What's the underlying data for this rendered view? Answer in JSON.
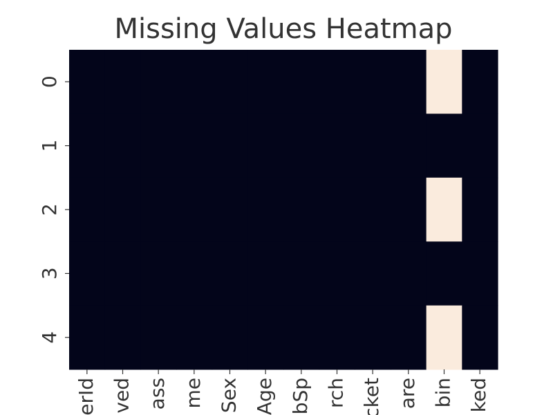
{
  "chart_data": {
    "type": "heatmap",
    "title": "Missing Values Heatmap",
    "x_tick_labels": [
      "erId",
      "ved",
      "ass",
      "me",
      "Sex",
      "Age",
      "bSp",
      "rch",
      "cket",
      "are",
      "bin",
      "ked"
    ],
    "y_tick_labels": [
      "0",
      "1",
      "2",
      "3",
      "4"
    ],
    "matrix": [
      [
        0,
        0,
        0,
        0,
        0,
        0,
        0,
        0,
        0,
        0,
        1,
        0
      ],
      [
        0,
        0,
        0,
        0,
        0,
        0,
        0,
        0,
        0,
        0,
        0,
        0
      ],
      [
        0,
        0,
        0,
        0,
        0,
        0,
        0,
        0,
        0,
        0,
        1,
        0
      ],
      [
        0,
        0,
        0,
        0,
        0,
        0,
        0,
        0,
        0,
        0,
        0,
        0
      ],
      [
        0,
        0,
        0,
        0,
        0,
        0,
        0,
        0,
        0,
        0,
        1,
        0
      ]
    ],
    "colors": {
      "present": "#03051a",
      "missing": "#faebdd"
    },
    "colorbar": false,
    "grid": false
  }
}
